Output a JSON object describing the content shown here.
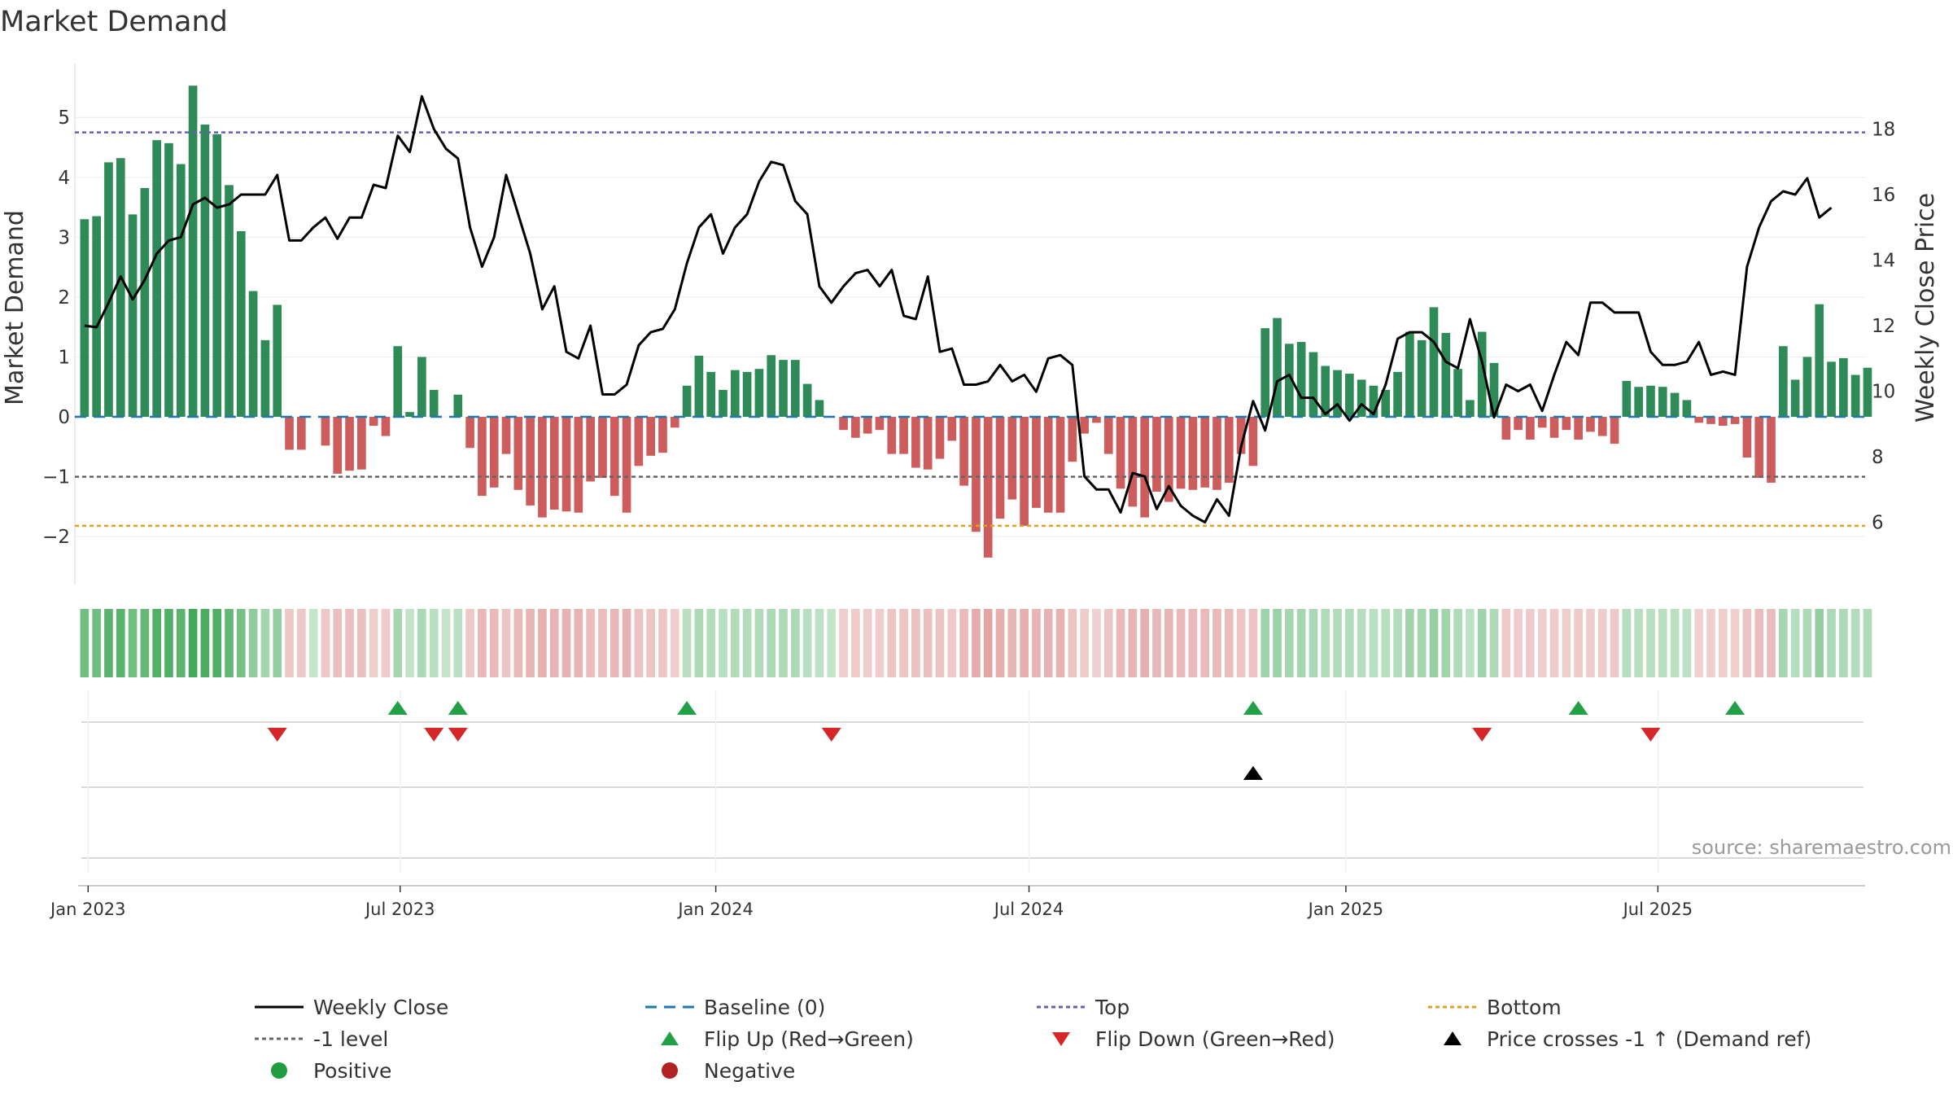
{
  "colors": {
    "positive_bar": "#2e8b57",
    "negative_bar": "#cd5c5c",
    "weekly_close": "#000000",
    "baseline": "#1f77b4",
    "top": "#6b5fb5",
    "bottom": "#e0a020",
    "minus1": "#666666",
    "flip_up": "#22a046",
    "flip_down": "#d62728",
    "price_cross": "#000000",
    "positive_dot": "#1e9e3e",
    "negative_dot": "#b22222"
  },
  "chart_data": {
    "type": "bar",
    "title": "Market Demand",
    "ylabel_left": "Market Demand",
    "ylabel_right": "Weekly Close Price",
    "source": "source: sharemaestro.com",
    "ylim_left": [
      -2.8,
      5.9
    ],
    "ylim_right": [
      4.1,
      20.0
    ],
    "yticks_left": [
      {
        "v": 5,
        "label": "5"
      },
      {
        "v": 4,
        "label": "4"
      },
      {
        "v": 3,
        "label": "3"
      },
      {
        "v": 2,
        "label": "2"
      },
      {
        "v": 1,
        "label": "1"
      },
      {
        "v": 0,
        "label": "0"
      },
      {
        "v": -1,
        "label": "−1"
      },
      {
        "v": -2,
        "label": "−2"
      }
    ],
    "yticks_right": [
      {
        "v": 18,
        "label": "18"
      },
      {
        "v": 16,
        "label": "16"
      },
      {
        "v": 14,
        "label": "14"
      },
      {
        "v": 12,
        "label": "12"
      },
      {
        "v": 10,
        "label": "10"
      },
      {
        "v": 8,
        "label": "8"
      },
      {
        "v": 6,
        "label": "6"
      }
    ],
    "x_start": "2022-12-30",
    "x_step_days": 7,
    "xlim_weeks": [
      -0.8,
      147.8
    ],
    "xticks": [
      {
        "week": 0.3,
        "label": "Jan 2023"
      },
      {
        "week": 26.2,
        "label": "Jul 2023"
      },
      {
        "week": 52.4,
        "label": "Jan 2024"
      },
      {
        "week": 78.4,
        "label": "Jul 2024"
      },
      {
        "week": 104.7,
        "label": "Jan 2025"
      },
      {
        "week": 130.6,
        "label": "Jul 2025"
      }
    ],
    "reference_lines": {
      "top": 4.75,
      "bottom": -1.82,
      "minus1": -1.0,
      "baseline": 0
    },
    "demand": [
      3.3,
      3.35,
      4.25,
      4.32,
      3.38,
      3.82,
      4.62,
      4.57,
      4.22,
      5.53,
      4.88,
      4.72,
      3.87,
      3.1,
      2.1,
      1.28,
      1.87,
      -0.55,
      -0.55,
      0,
      -0.48,
      -0.95,
      -0.9,
      -0.88,
      -0.15,
      -0.32,
      1.18,
      0.08,
      1.0,
      0.45,
      0,
      0.37,
      -0.52,
      -1.32,
      -1.18,
      -0.62,
      -1.22,
      -1.48,
      -1.68,
      -1.55,
      -1.58,
      -1.6,
      -1.08,
      -1.02,
      -1.32,
      -1.6,
      -0.82,
      -0.65,
      -0.6,
      -0.18,
      0.52,
      1.02,
      0.75,
      0.45,
      0.78,
      0.75,
      0.8,
      1.03,
      0.95,
      0.95,
      0.55,
      0.28,
      0,
      -0.22,
      -0.35,
      -0.28,
      -0.22,
      -0.62,
      -0.62,
      -0.85,
      -0.88,
      -0.7,
      -0.4,
      -1.15,
      -1.92,
      -2.35,
      -1.7,
      -1.38,
      -1.82,
      -1.52,
      -1.6,
      -1.6,
      -0.75,
      -0.28,
      -0.1,
      -0.62,
      -1.2,
      -1.5,
      -1.68,
      -1.25,
      -1.42,
      -1.2,
      -1.22,
      -1.18,
      -1.22,
      -1.1,
      -0.62,
      -0.82,
      1.48,
      1.65,
      1.22,
      1.25,
      1.08,
      0.85,
      0.78,
      0.72,
      0.62,
      0.52,
      0.45,
      0.75,
      1.42,
      1.28,
      1.83,
      1.4,
      0.8,
      0.28,
      1.42,
      0.9,
      -0.38,
      -0.22,
      -0.38,
      -0.18,
      -0.35,
      -0.22,
      -0.38,
      -0.25,
      -0.32,
      -0.45,
      0.6,
      0.5,
      0.52,
      0.5,
      0.4,
      0.28,
      -0.1,
      -0.12,
      -0.15,
      -0.12,
      -0.68,
      -1.02,
      -1.1,
      1.18,
      0.62,
      1.0,
      1.88,
      0.92,
      0.98,
      0.7,
      0.82
    ],
    "weekly_close": [
      12.0,
      11.95,
      12.7,
      13.5,
      12.8,
      13.4,
      14.2,
      14.6,
      14.7,
      15.7,
      15.9,
      15.6,
      15.7,
      16.0,
      16.0,
      16.0,
      16.6,
      14.6,
      14.6,
      15.0,
      15.3,
      14.65,
      15.3,
      15.3,
      16.3,
      16.2,
      17.8,
      17.3,
      19.0,
      18.0,
      17.4,
      17.1,
      15.0,
      13.8,
      14.7,
      16.6,
      15.4,
      14.2,
      12.5,
      13.2,
      11.2,
      11.0,
      12.0,
      9.9,
      9.9,
      10.2,
      11.4,
      11.8,
      11.9,
      12.5,
      13.9,
      15.0,
      15.4,
      14.2,
      15.0,
      15.4,
      16.4,
      17.0,
      16.9,
      15.8,
      15.4,
      13.2,
      12.7,
      13.2,
      13.6,
      13.7,
      13.2,
      13.7,
      12.3,
      12.2,
      13.5,
      11.2,
      11.3,
      10.2,
      10.2,
      10.3,
      10.8,
      10.3,
      10.5,
      9.98,
      11.0,
      11.1,
      10.8,
      7.4,
      7.0,
      7.0,
      6.3,
      7.5,
      7.4,
      6.4,
      7.1,
      6.5,
      6.2,
      6.0,
      6.7,
      6.2,
      8.3,
      9.7,
      8.8,
      10.3,
      10.5,
      9.8,
      9.8,
      9.3,
      9.6,
      9.1,
      9.6,
      9.3,
      10.2,
      11.6,
      11.8,
      11.8,
      11.5,
      10.9,
      10.7,
      12.2,
      10.9,
      9.2,
      10.2,
      10.0,
      10.2,
      9.4,
      10.5,
      11.5,
      11.1,
      12.7,
      12.7,
      12.4,
      12.4,
      12.4,
      11.2,
      10.8,
      10.8,
      10.9,
      11.5,
      10.5,
      10.6,
      10.5,
      13.8,
      15.0,
      15.8,
      16.1,
      16.0,
      16.5,
      15.3,
      15.6
    ],
    "flip_up_weeks": [
      26,
      31,
      50,
      97,
      124,
      137
    ],
    "flip_down_weeks": [
      16,
      29,
      31,
      62,
      116,
      130
    ],
    "price_cross_weeks": [
      97
    ]
  },
  "legend": [
    {
      "key": "weekly_close",
      "label": "Weekly Close"
    },
    {
      "key": "baseline",
      "label": "Baseline (0)"
    },
    {
      "key": "top",
      "label": "Top"
    },
    {
      "key": "bottom",
      "label": "Bottom"
    },
    {
      "key": "minus1",
      "label": "-1 level"
    },
    {
      "key": "flip_up",
      "label": "Flip Up (Red→Green)"
    },
    {
      "key": "flip_down",
      "label": "Flip Down (Green→Red)"
    },
    {
      "key": "price_cross",
      "label": "Price crosses -1 ↑ (Demand ref)"
    },
    {
      "key": "positive",
      "label": "Positive"
    },
    {
      "key": "negative",
      "label": "Negative"
    }
  ]
}
